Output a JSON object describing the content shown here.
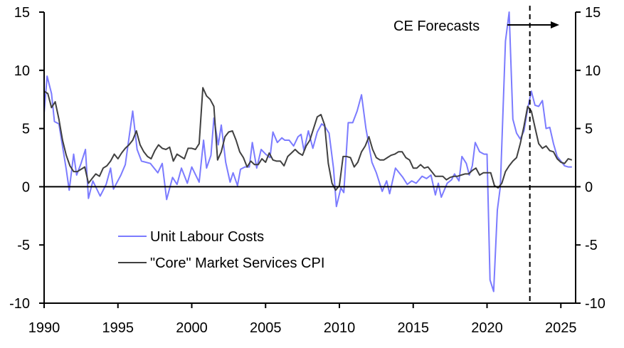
{
  "chart_data": {
    "type": "line",
    "title": "",
    "xlabel": "",
    "ylabel": "",
    "xlim": [
      1990,
      2026
    ],
    "ylim": [
      -10,
      15
    ],
    "y_ticks": [
      -10,
      -5,
      0,
      5,
      10,
      15
    ],
    "y_tick_labels": [
      "-10",
      "-5",
      "0",
      "5",
      "10",
      "15"
    ],
    "x_ticks": [
      1990,
      1995,
      2000,
      2005,
      2010,
      2015,
      2020,
      2025
    ],
    "x_tick_labels": [
      "1990",
      "1995",
      "2000",
      "2005",
      "2010",
      "2015",
      "2020",
      "2025"
    ],
    "legend_placement": "bottom-left",
    "forecast_line_x": 2022.9,
    "annotation": "CE Forecasts",
    "series": [
      {
        "name": "Unit Labour Costs",
        "color": "#7b7bff",
        "points": [
          [
            1990.0,
            6.3
          ],
          [
            1990.2,
            9.5
          ],
          [
            1990.5,
            8.0
          ],
          [
            1990.7,
            5.6
          ],
          [
            1991.0,
            5.4
          ],
          [
            1991.5,
            1.5
          ],
          [
            1991.7,
            -0.3
          ],
          [
            1992.0,
            2.8
          ],
          [
            1992.2,
            1.0
          ],
          [
            1992.5,
            2.0
          ],
          [
            1992.8,
            3.2
          ],
          [
            1993.0,
            -1.0
          ],
          [
            1993.3,
            0.5
          ],
          [
            1993.8,
            -0.8
          ],
          [
            1994.2,
            0.2
          ],
          [
            1994.5,
            1.6
          ],
          [
            1994.7,
            -0.2
          ],
          [
            1995.2,
            1.0
          ],
          [
            1995.5,
            1.9
          ],
          [
            1996.0,
            6.5
          ],
          [
            1996.3,
            3.2
          ],
          [
            1996.6,
            2.2
          ],
          [
            1997.2,
            2.0
          ],
          [
            1997.7,
            1.2
          ],
          [
            1998.0,
            2.0
          ],
          [
            1998.3,
            -1.1
          ],
          [
            1998.7,
            0.8
          ],
          [
            1999.0,
            0.2
          ],
          [
            1999.3,
            1.6
          ],
          [
            1999.7,
            0.3
          ],
          [
            2000.0,
            1.7
          ],
          [
            2000.5,
            0.4
          ],
          [
            2000.8,
            4.0
          ],
          [
            2001.0,
            1.6
          ],
          [
            2001.3,
            2.7
          ],
          [
            2001.5,
            5.9
          ],
          [
            2001.8,
            3.6
          ],
          [
            2002.0,
            5.3
          ],
          [
            2002.3,
            2.1
          ],
          [
            2002.6,
            0.4
          ],
          [
            2002.8,
            1.2
          ],
          [
            2003.1,
            0.1
          ],
          [
            2003.3,
            1.5
          ],
          [
            2003.6,
            1.7
          ],
          [
            2003.9,
            1.7
          ],
          [
            2004.1,
            3.8
          ],
          [
            2004.4,
            1.6
          ],
          [
            2004.7,
            3.2
          ],
          [
            2005.0,
            2.8
          ],
          [
            2005.3,
            2.5
          ],
          [
            2005.5,
            4.7
          ],
          [
            2005.8,
            3.8
          ],
          [
            2006.1,
            4.2
          ],
          [
            2006.3,
            4.0
          ],
          [
            2006.6,
            4.0
          ],
          [
            2006.9,
            3.5
          ],
          [
            2007.2,
            4.3
          ],
          [
            2007.4,
            4.5
          ],
          [
            2007.6,
            3.1
          ],
          [
            2007.9,
            4.8
          ],
          [
            2008.2,
            3.3
          ],
          [
            2008.5,
            4.7
          ],
          [
            2008.8,
            5.4
          ],
          [
            2009.0,
            5.2
          ],
          [
            2009.3,
            4.6
          ],
          [
            2009.6,
            1.6
          ],
          [
            2009.8,
            -1.7
          ],
          [
            2010.1,
            -0.1
          ],
          [
            2010.3,
            -0.5
          ],
          [
            2010.6,
            5.5
          ],
          [
            2010.9,
            5.5
          ],
          [
            2011.2,
            6.5
          ],
          [
            2011.5,
            7.9
          ],
          [
            2011.8,
            5.0
          ],
          [
            2012.2,
            2.1
          ],
          [
            2012.5,
            1.2
          ],
          [
            2012.9,
            -0.4
          ],
          [
            2013.2,
            0.5
          ],
          [
            2013.4,
            -0.6
          ],
          [
            2013.8,
            1.6
          ],
          [
            2014.3,
            0.8
          ],
          [
            2014.6,
            0.2
          ],
          [
            2014.9,
            0.5
          ],
          [
            2015.2,
            0.3
          ],
          [
            2015.6,
            0.9
          ],
          [
            2015.9,
            0.7
          ],
          [
            2016.2,
            1.0
          ],
          [
            2016.5,
            -0.7
          ],
          [
            2016.7,
            0.3
          ],
          [
            2016.9,
            -0.9
          ],
          [
            2017.3,
            0.3
          ],
          [
            2017.6,
            0.6
          ],
          [
            2017.8,
            1.1
          ],
          [
            2018.1,
            0.5
          ],
          [
            2018.3,
            2.6
          ],
          [
            2018.6,
            2.0
          ],
          [
            2018.8,
            1.0
          ],
          [
            2019.0,
            1.8
          ],
          [
            2019.2,
            3.8
          ],
          [
            2019.5,
            3.0
          ],
          [
            2019.8,
            2.8
          ],
          [
            2020.0,
            2.8
          ],
          [
            2020.2,
            -8.0
          ],
          [
            2020.45,
            -9.0
          ],
          [
            2020.7,
            -2.0
          ],
          [
            2020.9,
            0.0
          ],
          [
            2021.25,
            12.5
          ],
          [
            2021.5,
            15.0
          ],
          [
            2021.75,
            5.8
          ],
          [
            2022.0,
            4.6
          ],
          [
            2022.25,
            4.1
          ],
          [
            2022.5,
            4.8
          ],
          [
            2022.75,
            6.7
          ],
          [
            2023.0,
            8.2
          ],
          [
            2023.25,
            7.0
          ],
          [
            2023.5,
            6.9
          ],
          [
            2023.75,
            7.4
          ],
          [
            2024.0,
            5.0
          ],
          [
            2024.25,
            5.1
          ],
          [
            2024.5,
            3.7
          ],
          [
            2024.75,
            2.6
          ],
          [
            2025.0,
            2.2
          ],
          [
            2025.25,
            1.8
          ],
          [
            2025.5,
            1.7
          ],
          [
            2025.75,
            1.7
          ]
        ]
      },
      {
        "name": "\"Core\" Market Services CPI",
        "color": "#404040",
        "points": [
          [
            1990.0,
            8.2
          ],
          [
            1990.25,
            8.0
          ],
          [
            1990.5,
            6.8
          ],
          [
            1990.75,
            7.3
          ],
          [
            1991.0,
            5.8
          ],
          [
            1991.25,
            4.0
          ],
          [
            1991.5,
            2.7
          ],
          [
            1991.75,
            1.8
          ],
          [
            1992.0,
            1.3
          ],
          [
            1992.25,
            1.3
          ],
          [
            1992.5,
            1.5
          ],
          [
            1992.75,
            1.7
          ],
          [
            1993.0,
            0.3
          ],
          [
            1993.25,
            0.7
          ],
          [
            1993.5,
            1.1
          ],
          [
            1993.75,
            0.9
          ],
          [
            1994.0,
            1.6
          ],
          [
            1994.25,
            1.8
          ],
          [
            1994.5,
            2.2
          ],
          [
            1994.75,
            2.8
          ],
          [
            1995.0,
            2.4
          ],
          [
            1995.25,
            2.9
          ],
          [
            1995.5,
            3.3
          ],
          [
            1995.75,
            3.6
          ],
          [
            1996.0,
            4.0
          ],
          [
            1996.25,
            4.8
          ],
          [
            1996.5,
            3.6
          ],
          [
            1996.75,
            3.0
          ],
          [
            1997.0,
            2.6
          ],
          [
            1997.25,
            2.4
          ],
          [
            1997.5,
            3.1
          ],
          [
            1997.75,
            3.6
          ],
          [
            1998.0,
            3.3
          ],
          [
            1998.25,
            3.2
          ],
          [
            1998.5,
            3.4
          ],
          [
            1998.75,
            2.2
          ],
          [
            1999.0,
            2.8
          ],
          [
            1999.25,
            2.6
          ],
          [
            1999.5,
            2.4
          ],
          [
            1999.75,
            3.3
          ],
          [
            2000.0,
            3.3
          ],
          [
            2000.25,
            3.2
          ],
          [
            2000.5,
            3.7
          ],
          [
            2000.75,
            8.5
          ],
          [
            2001.0,
            7.8
          ],
          [
            2001.25,
            7.5
          ],
          [
            2001.5,
            6.9
          ],
          [
            2001.75,
            2.3
          ],
          [
            2002.0,
            3.0
          ],
          [
            2002.25,
            4.3
          ],
          [
            2002.5,
            4.7
          ],
          [
            2002.75,
            4.8
          ],
          [
            2003.0,
            4.0
          ],
          [
            2003.25,
            3.0
          ],
          [
            2003.5,
            2.5
          ],
          [
            2003.75,
            1.7
          ],
          [
            2004.0,
            2.2
          ],
          [
            2004.25,
            1.9
          ],
          [
            2004.5,
            1.9
          ],
          [
            2004.75,
            2.4
          ],
          [
            2005.0,
            2.1
          ],
          [
            2005.25,
            2.9
          ],
          [
            2005.5,
            2.3
          ],
          [
            2005.75,
            2.2
          ],
          [
            2006.0,
            2.2
          ],
          [
            2006.25,
            1.8
          ],
          [
            2006.5,
            2.6
          ],
          [
            2006.75,
            2.9
          ],
          [
            2007.0,
            3.2
          ],
          [
            2007.25,
            2.9
          ],
          [
            2007.5,
            2.7
          ],
          [
            2007.75,
            3.5
          ],
          [
            2008.0,
            4.0
          ],
          [
            2008.25,
            5.0
          ],
          [
            2008.5,
            6.0
          ],
          [
            2008.75,
            6.2
          ],
          [
            2009.0,
            5.3
          ],
          [
            2009.25,
            2.0
          ],
          [
            2009.5,
            0.3
          ],
          [
            2009.75,
            -0.3
          ],
          [
            2010.0,
            0.1
          ],
          [
            2010.25,
            2.6
          ],
          [
            2010.5,
            2.6
          ],
          [
            2010.75,
            2.5
          ],
          [
            2011.0,
            1.7
          ],
          [
            2011.25,
            2.1
          ],
          [
            2011.5,
            3.0
          ],
          [
            2011.75,
            3.5
          ],
          [
            2012.0,
            4.3
          ],
          [
            2012.25,
            3.2
          ],
          [
            2012.5,
            2.5
          ],
          [
            2012.75,
            2.3
          ],
          [
            2013.0,
            2.3
          ],
          [
            2013.25,
            2.5
          ],
          [
            2013.5,
            2.7
          ],
          [
            2013.75,
            2.8
          ],
          [
            2014.0,
            3.0
          ],
          [
            2014.25,
            3.0
          ],
          [
            2014.5,
            2.5
          ],
          [
            2014.75,
            2.3
          ],
          [
            2015.0,
            1.6
          ],
          [
            2015.25,
            1.6
          ],
          [
            2015.5,
            1.9
          ],
          [
            2015.75,
            1.6
          ],
          [
            2016.0,
            1.7
          ],
          [
            2016.25,
            1.3
          ],
          [
            2016.5,
            0.9
          ],
          [
            2016.75,
            0.9
          ],
          [
            2017.0,
            0.9
          ],
          [
            2017.25,
            0.6
          ],
          [
            2017.5,
            0.8
          ],
          [
            2017.75,
            0.9
          ],
          [
            2018.0,
            0.9
          ],
          [
            2018.25,
            1.0
          ],
          [
            2018.5,
            1.1
          ],
          [
            2018.75,
            1.1
          ],
          [
            2019.0,
            1.4
          ],
          [
            2019.25,
            1.6
          ],
          [
            2019.5,
            1.0
          ],
          [
            2019.75,
            1.2
          ],
          [
            2020.0,
            1.2
          ],
          [
            2020.25,
            1.2
          ],
          [
            2020.5,
            0.1
          ],
          [
            2020.75,
            -0.1
          ],
          [
            2021.0,
            0.3
          ],
          [
            2021.25,
            1.3
          ],
          [
            2021.5,
            1.8
          ],
          [
            2021.75,
            2.2
          ],
          [
            2022.0,
            2.5
          ],
          [
            2022.25,
            3.7
          ],
          [
            2022.5,
            5.2
          ],
          [
            2022.75,
            6.9
          ],
          [
            2023.0,
            6.5
          ],
          [
            2023.25,
            5.1
          ],
          [
            2023.5,
            3.7
          ],
          [
            2023.75,
            3.3
          ],
          [
            2024.0,
            3.5
          ],
          [
            2024.25,
            3.1
          ],
          [
            2024.5,
            3.0
          ],
          [
            2024.75,
            2.4
          ],
          [
            2025.0,
            2.1
          ],
          [
            2025.25,
            2.0
          ],
          [
            2025.5,
            2.4
          ],
          [
            2025.75,
            2.3
          ]
        ]
      }
    ]
  }
}
